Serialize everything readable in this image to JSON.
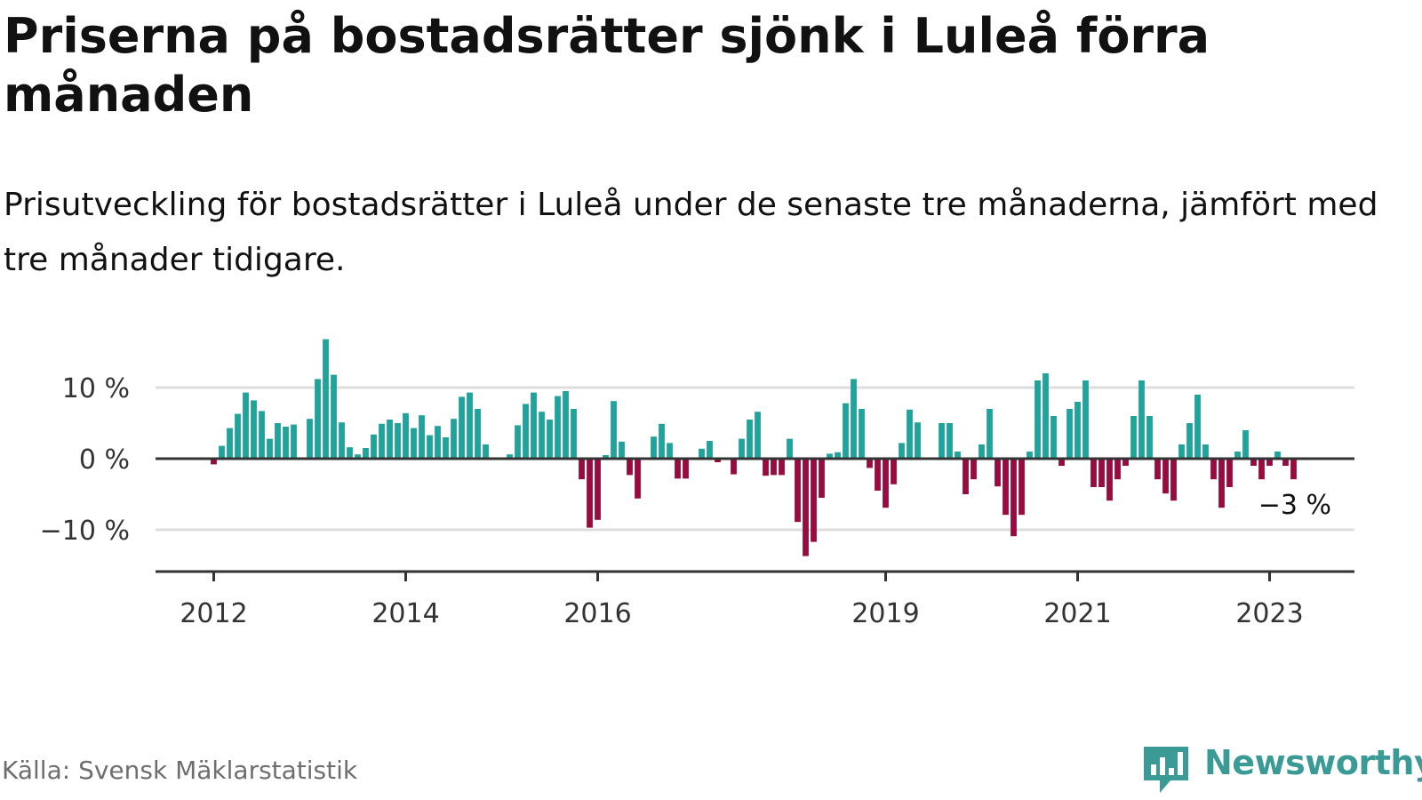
{
  "title": "Priserna på bostadsrätter sjönk i Luleå förra månaden",
  "subtitle": "Prisutveckling för bostadsrätter i Luleå under de senaste tre månaderna, jämfört med tre månader tidigare.",
  "source": "Källa: Svensk Mäklarstatistik",
  "logo": {
    "text": "Newsworthy",
    "icon": "newsworthy-chart-bubble-icon"
  },
  "colors": {
    "positive": "#1fa39b",
    "negative": "#980b3f",
    "grid": "#dddddd",
    "axis": "#333333"
  },
  "chart_data": {
    "type": "bar",
    "title": "",
    "xlabel": "",
    "ylabel": "",
    "unit": "%",
    "start": "2012-01",
    "ylim": [
      -16,
      18
    ],
    "y_ticks": [
      10,
      0,
      -10
    ],
    "y_tick_labels": [
      "10 %",
      "0 %",
      "−10 %"
    ],
    "x_tick_labels": [
      "2012",
      "2014",
      "2016",
      "2019",
      "2021",
      "2023"
    ],
    "annotation": "−3 %",
    "grid": true,
    "values": [
      -0.8,
      1.8,
      4.3,
      6.3,
      9.3,
      8.2,
      6.7,
      2.8,
      5.0,
      4.5,
      4.8,
      0,
      5.6,
      11.2,
      16.8,
      11.8,
      5.1,
      1.6,
      0.6,
      1.5,
      3.4,
      4.9,
      5.5,
      5.0,
      6.4,
      4.3,
      6.1,
      3.3,
      4.6,
      3.0,
      5.6,
      8.7,
      9.3,
      7.0,
      2.0,
      0,
      0,
      0.6,
      4.7,
      7.7,
      9.3,
      6.6,
      5.5,
      8.8,
      9.5,
      7.0,
      -2.9,
      -9.7,
      -8.6,
      0.5,
      8.1,
      2.4,
      -2.3,
      -5.6,
      0,
      3.1,
      4.9,
      2.2,
      -2.8,
      -2.8,
      0,
      1.4,
      2.5,
      -0.5,
      0,
      -2.2,
      2.8,
      5.5,
      6.6,
      -2.4,
      -2.3,
      -2.3,
      2.8,
      -8.9,
      -13.7,
      -11.7,
      -5.5,
      0.7,
      0.9,
      7.8,
      11.2,
      7.0,
      -1.3,
      -4.5,
      -6.9,
      -3.6,
      2.2,
      6.9,
      5.1,
      0,
      0,
      5.0,
      5.0,
      1.0,
      -5.0,
      -2.9,
      2.0,
      7.0,
      -3.9,
      -7.9,
      -10.9,
      -7.9,
      1.0,
      11.0,
      12.0,
      6.0,
      -1.0,
      7.0,
      8.0,
      11.0,
      -4.0,
      -4.0,
      -5.9,
      -2.9,
      -1.0,
      6.0,
      11.0,
      6.0,
      -2.9,
      -4.9,
      -5.9,
      2.0,
      5.0,
      9.0,
      2.0,
      -2.9,
      -6.9,
      -4.0,
      1.0,
      4.0,
      -1.0,
      -2.9,
      -1.0,
      1.0,
      -1.0,
      -2.9
    ]
  }
}
